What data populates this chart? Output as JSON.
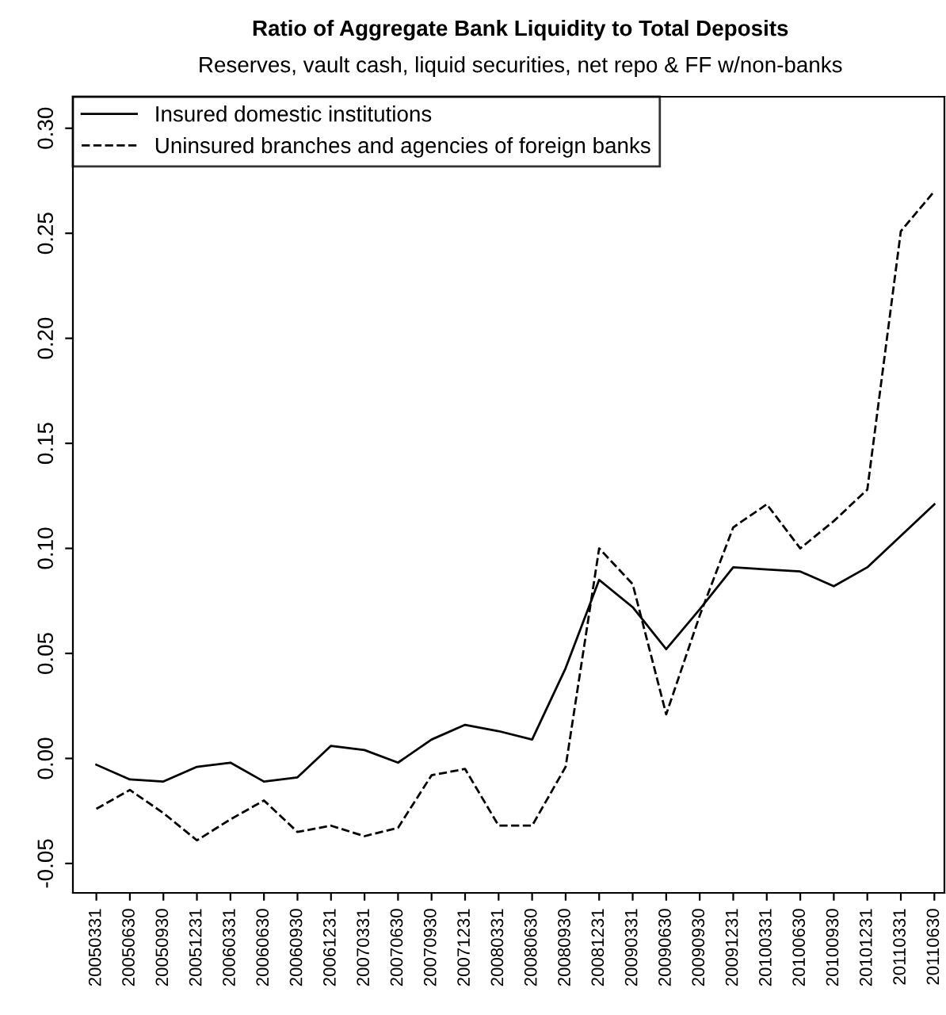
{
  "chart_data": {
    "type": "line",
    "title": "Ratio of Aggregate Bank Liquidity to Total Deposits",
    "subtitle": "Reserves, vault cash, liquid securities, net repo & FF w/non-banks",
    "categories": [
      "20050331",
      "20050630",
      "20050930",
      "20051231",
      "20060331",
      "20060630",
      "20060930",
      "20061231",
      "20070331",
      "20070630",
      "20070930",
      "20071231",
      "20080331",
      "20080630",
      "20080930",
      "20081231",
      "20090331",
      "20090630",
      "20090930",
      "20091231",
      "20100331",
      "20100630",
      "20100930",
      "20101231",
      "20110331",
      "20110630"
    ],
    "series": [
      {
        "name": "Insured domestic institutions",
        "color": "#000000",
        "line_style": "solid",
        "values": [
          -0.003,
          -0.01,
          -0.011,
          -0.004,
          -0.002,
          -0.011,
          -0.009,
          0.006,
          0.004,
          -0.002,
          0.009,
          0.016,
          0.013,
          0.009,
          0.043,
          0.085,
          0.072,
          0.052,
          0.071,
          0.091,
          0.09,
          0.089,
          0.082,
          0.091,
          0.106,
          0.121
        ]
      },
      {
        "name": "Uninsured branches and agencies of foreign banks",
        "color": "#000000",
        "line_style": "dashed",
        "values": [
          -0.024,
          -0.015,
          -0.026,
          -0.039,
          -0.029,
          -0.02,
          -0.035,
          -0.032,
          -0.037,
          -0.033,
          -0.008,
          -0.005,
          -0.032,
          -0.032,
          -0.004,
          0.1,
          0.083,
          0.021,
          0.068,
          0.11,
          0.121,
          0.1,
          0.113,
          0.128,
          0.251,
          0.27
        ]
      }
    ],
    "ylim": [
      -0.064,
      0.315
    ],
    "yticks": [
      {
        "value": -0.05,
        "label": "-0.05"
      },
      {
        "value": 0.0,
        "label": "0.00"
      },
      {
        "value": 0.05,
        "label": "0.05"
      },
      {
        "value": 0.1,
        "label": "0.10"
      },
      {
        "value": 0.15,
        "label": "0.15"
      },
      {
        "value": 0.2,
        "label": "0.20"
      },
      {
        "value": 0.25,
        "label": "0.25"
      },
      {
        "value": 0.3,
        "label": "0.30"
      }
    ],
    "grid": false,
    "legend": "top left",
    "marker": "none"
  }
}
